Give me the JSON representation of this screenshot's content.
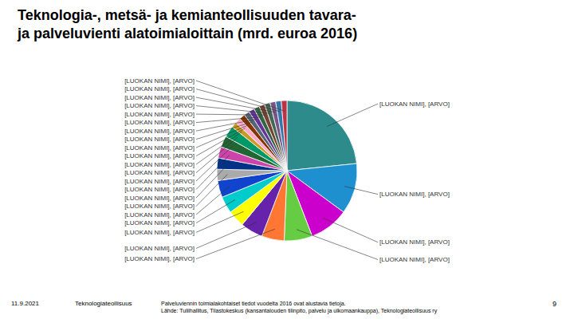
{
  "chart_data": {
    "type": "pie",
    "title": "Teknologia-, metsä- ja kemianteollisuuden tavara-\nja palveluvienti alatoimialoittain (mrd. euroa 2016)",
    "categories": [
      "[LUOKAN NIMI], [ARVO]",
      "[LUOKAN NIMI], [ARVO]",
      "[LUOKAN NIMI], [ARVO]",
      "[LUOKAN NIMI], [ARVO]",
      "[LUOKAN NIMI], [ARVO]",
      "[LUOKAN NIMI], [ARVO]",
      "[LUOKAN NIMI], [ARVO]",
      "[LUOKAN NIMI], [ARVO]",
      "[LUOKAN NIMI], [ARVO]",
      "[LUOKAN NIMI], [ARVO]",
      "[LUOKAN NIMI], [ARVO]",
      "[LUOKAN NIMI], [ARVO]",
      "[LUOKAN NIMI], [ARVO]",
      "[LUOKAN NIMI], [ARVO]",
      "[LUOKAN NIMI], [ARVO]",
      "[LUOKAN NIMI], [ARVO]",
      "[LUOKAN NIMI], [ARVO]",
      "[LUOKAN NIMI], [ARVO]",
      "[LUOKAN NIMI], [ARVO]",
      "[LUOKAN NIMI], [ARVO]",
      "[LUOKAN NIMI], [ARVO]",
      "[LUOKAN NIMI], [ARVO]",
      "[LUOKAN NIMI], [ARVO]",
      "[LUOKAN NIMI], [ARVO]",
      "[LUOKAN NIMI], [ARVO]"
    ],
    "values": [
      18,
      9,
      7,
      5,
      4,
      4,
      3,
      3,
      3,
      2,
      2,
      2,
      2,
      2,
      1,
      1,
      1,
      1,
      1,
      1,
      1,
      1,
      1,
      1,
      1
    ],
    "colors": [
      "#2e8b8b",
      "#1e90d0",
      "#cc00cc",
      "#66cc44",
      "#ff7733",
      "#6622aa",
      "#ffff00",
      "#00cccc",
      "#1144cc",
      "#aaaaaa",
      "#003388",
      "#cc44aa",
      "#226633",
      "#009966",
      "#cc9922",
      "#ffaacc",
      "#883300",
      "#556677",
      "#663399",
      "#336644",
      "#774433",
      "#446655",
      "#775588",
      "#3377aa",
      "#bb3344"
    ],
    "annotations": [
      "11.9.2021",
      "Teknologiateollisuus",
      "Palveluviennin toimialakohtaiset tiedot vuodelta 2016 ovat alustavia tietoja.\nLähde: Tuliihallitus, Tilastokeskus (kansantalouden tilinpito, palvelu ja ulkomaankauppa), Teknologiateollisuus ry",
      "9"
    ]
  }
}
